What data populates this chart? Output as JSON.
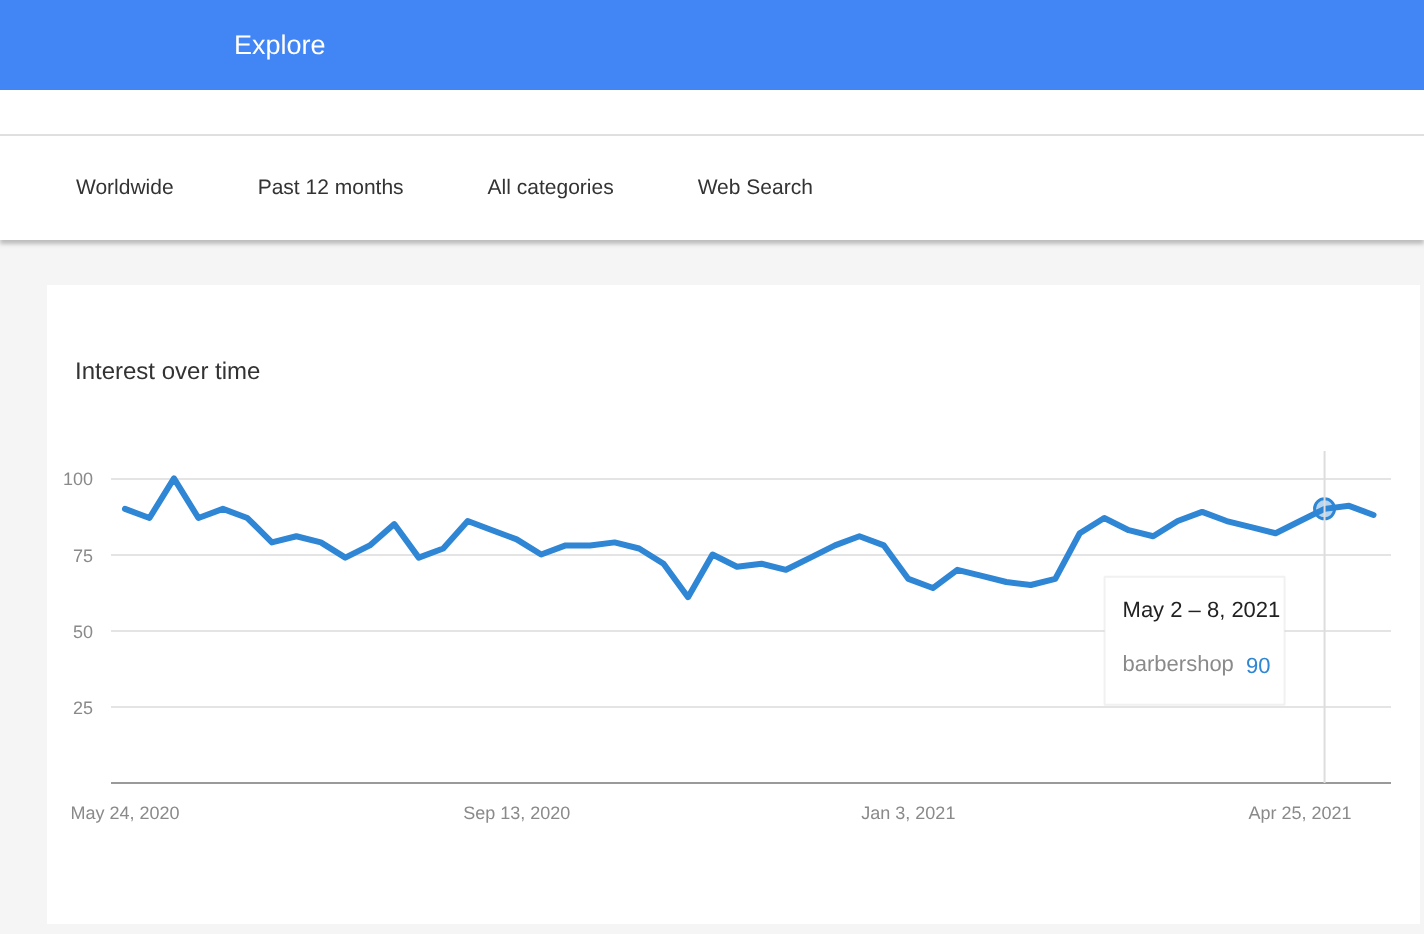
{
  "chart_data": {
    "type": "line",
    "title": "Interest over time",
    "annotations": [
      "Explore",
      "Worldwide",
      "Past 12 months",
      "All categories",
      "Web Search",
      "May 2 – 8, 2021",
      "90"
    ],
    "x": [
      "2020-05-24",
      "2020-05-31",
      "2020-06-07",
      "2020-06-14",
      "2020-06-21",
      "2020-06-28",
      "2020-07-05",
      "2020-07-12",
      "2020-07-19",
      "2020-07-26",
      "2020-08-02",
      "2020-08-09",
      "2020-08-16",
      "2020-08-23",
      "2020-08-30",
      "2020-09-06",
      "2020-09-13",
      "2020-09-20",
      "2020-09-27",
      "2020-10-04",
      "2020-10-11",
      "2020-10-18",
      "2020-10-25",
      "2020-11-01",
      "2020-11-08",
      "2020-11-15",
      "2020-11-22",
      "2020-11-29",
      "2020-12-06",
      "2020-12-13",
      "2020-12-20",
      "2020-12-27",
      "2021-01-03",
      "2021-01-10",
      "2021-01-17",
      "2021-01-24",
      "2021-01-31",
      "2021-02-07",
      "2021-02-14",
      "2021-02-21",
      "2021-02-28",
      "2021-03-07",
      "2021-03-14",
      "2021-03-21",
      "2021-03-28",
      "2021-04-04",
      "2021-04-11",
      "2021-04-18",
      "2021-04-25",
      "2021-05-02",
      "2021-05-09",
      "2021-05-16"
    ],
    "series": [
      {
        "name": "barbershop",
        "color": "#2e86d4",
        "values": [
          90,
          87,
          100,
          87,
          90,
          87,
          79,
          81,
          79,
          74,
          78,
          85,
          74,
          77,
          86,
          83,
          80,
          75,
          78,
          78,
          79,
          77,
          72,
          61,
          75,
          71,
          72,
          70,
          74,
          78,
          81,
          78,
          67,
          64,
          70,
          68,
          66,
          65,
          67,
          82,
          87,
          83,
          81,
          86,
          89,
          86,
          84,
          82,
          86,
          90,
          91,
          88
        ]
      },
      {
        "type": "scatter",
        "x": [
          "2021-05-02"
        ],
        "values": [
          90
        ],
        "color": "#2e86d4"
      }
    ],
    "xlim": [
      "2020-05-20",
      "2021-05-21"
    ],
    "xticks": [
      {
        "value": "2020-05-24",
        "label": "May 24, 2020"
      },
      {
        "value": "2020-09-13",
        "label": "Sep 13, 2020"
      },
      {
        "value": "2021-01-03",
        "label": "Jan 3, 2021"
      },
      {
        "value": "2021-04-25",
        "label": "Apr 25, 2021"
      }
    ],
    "ylim": [
      0,
      109
    ],
    "yticks": [
      25,
      50,
      75,
      100
    ],
    "grid": "y",
    "line_style": "solid",
    "ref_lines": [
      {
        "axis": "x",
        "value": "2021-05-02",
        "color": "#dddddd"
      }
    ]
  }
}
